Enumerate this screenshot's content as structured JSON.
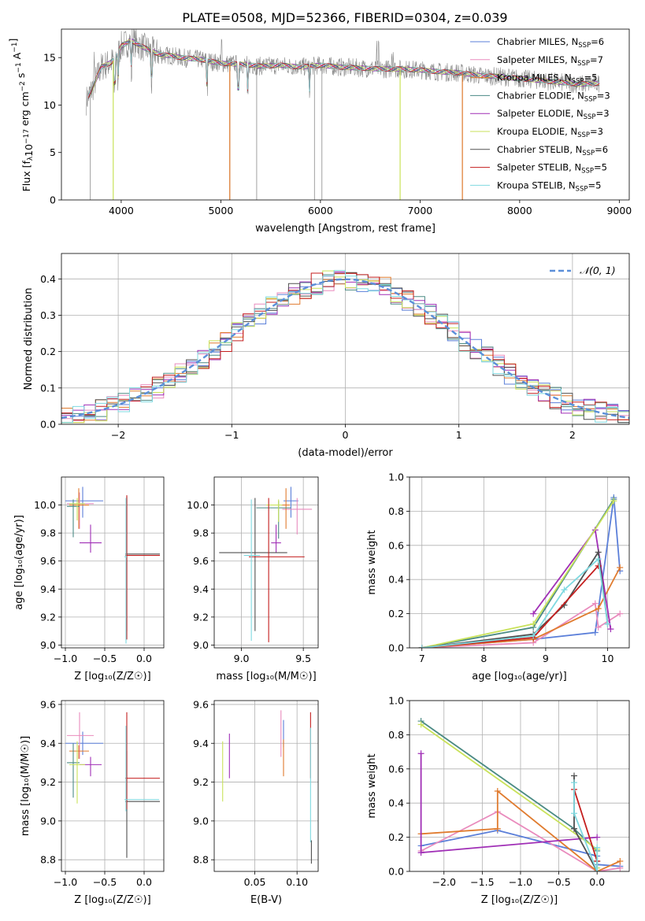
{
  "figure": {
    "title": "PLATE=0508, MJD=52366, FIBERID=0304, z=0.039"
  },
  "colors": {
    "Chabrier MILES": "#5b7fd9",
    "Salpeter MILES": "#e98bbd",
    "Kroupa MILES": "#e07b2e",
    "Chabrier ELODIE": "#4a8a84",
    "Salpeter ELODIE": "#a02fb6",
    "Kroupa ELODIE": "#c9e25a",
    "Chabrier STELIB": "#505050",
    "Salpeter STELIB": "#c41e1e",
    "Kroupa STELIB": "#7fd9e0",
    "data": "#8a8a8a",
    "normal": "#5b8fd9"
  },
  "chart_data": [
    {
      "id": "spectrum",
      "type": "line",
      "xlabel": "wavelength [Angstrom, rest frame]",
      "ylabel": "Flux [f_λ 10^-17 erg cm^-2 s^-1 A^-1]",
      "xlim": [
        3400,
        9100
      ],
      "ylim": [
        0,
        18
      ],
      "xticks": [
        4000,
        5000,
        6000,
        7000,
        8000,
        9000
      ],
      "yticks": [
        0,
        5,
        10,
        15
      ],
      "grid": false,
      "legend_position": "right",
      "legend": [
        {
          "label": "Chabrier MILES, N",
          "sub": "SSP",
          "suffix": "=6"
        },
        {
          "label": "Salpeter MILES, N",
          "sub": "SSP",
          "suffix": "=7"
        },
        {
          "label": "Kroupa MILES, N",
          "sub": "SSP",
          "suffix": "=5"
        },
        {
          "label": "Chabrier ELODIE, N",
          "sub": "SSP",
          "suffix": "=3"
        },
        {
          "label": "Salpeter ELODIE, N",
          "sub": "SSP",
          "suffix": "=3"
        },
        {
          "label": "Kroupa ELODIE, N",
          "sub": "SSP",
          "suffix": "=3"
        },
        {
          "label": "Chabrier STELIB, N",
          "sub": "SSP",
          "suffix": "=6"
        },
        {
          "label": "Salpeter STELIB, N",
          "sub": "SSP",
          "suffix": "=5"
        },
        {
          "label": "Kroupa STELIB, N",
          "sub": "SSP",
          "suffix": "=5"
        }
      ],
      "continuum": {
        "wavelength": [
          3650,
          3700,
          3800,
          3900,
          3950,
          4000,
          4100,
          4200,
          4300,
          4400,
          4500,
          4600,
          4800,
          5000,
          5200,
          5400,
          5600,
          5800,
          6000,
          6200,
          6400,
          6600,
          6800,
          7000,
          7200,
          7400,
          7600,
          7800,
          8000,
          8200,
          8400,
          8600,
          8800
        ],
        "flux": [
          10.5,
          11.5,
          14.0,
          14.5,
          15.0,
          16.2,
          16.8,
          16.2,
          15.7,
          15.3,
          15.2,
          15.0,
          14.8,
          14.4,
          14.3,
          14.1,
          14.2,
          14.0,
          14.2,
          14.0,
          13.9,
          13.8,
          13.8,
          13.7,
          13.5,
          13.4,
          13.1,
          13.0,
          12.8,
          12.6,
          12.4,
          12.2,
          12.3
        ]
      },
      "lines": {
        "absorption": [
          3933,
          3968,
          4102,
          4304,
          4861,
          5175,
          5270,
          5892
        ],
        "emission": [
          3727,
          4861,
          5007,
          6563,
          6583,
          6716,
          6731
        ]
      },
      "spikes": [
        {
          "wavelength": 3690,
          "flux": 0
        },
        {
          "wavelength": 5090,
          "flux": 0
        },
        {
          "wavelength": 5360,
          "flux": 0
        },
        {
          "wavelength": 5940,
          "flux": 0
        },
        {
          "wavelength": 6015,
          "flux": 0
        },
        {
          "wavelength": 6800,
          "flux": 0
        },
        {
          "wavelength": 7425,
          "flux": 1
        }
      ]
    },
    {
      "id": "residuals",
      "type": "bar",
      "xlabel": "(data-model)/error",
      "ylabel": "Normed distribution",
      "xlim": [
        -2.5,
        2.5
      ],
      "ylim": [
        0,
        0.47
      ],
      "xticks": [
        -2,
        -1,
        0,
        1,
        2
      ],
      "yticks": [
        0.0,
        0.1,
        0.2,
        0.3,
        0.4
      ],
      "grid": true,
      "legend_position": "top-right",
      "legend_label": "𝒩(0, 1)",
      "bin_width": 0.1,
      "bin_start": -2.5,
      "reference_curve": {
        "name": "𝒩(0, 1)",
        "mean": 0,
        "sigma": 1
      }
    },
    {
      "id": "age-vs-Z",
      "type": "scatter",
      "xlabel": "Z [log₁₀(Z/Z☉)]",
      "ylabel": "age  [log₁₀(age/yr)]",
      "xlim": [
        -1.05,
        0.25
      ],
      "ylim": [
        8.98,
        10.2
      ],
      "xticks": [
        -1.0,
        -0.5,
        0.0
      ],
      "yticks": [
        9.0,
        9.2,
        9.4,
        9.6,
        9.8,
        10.0
      ],
      "grid": true,
      "points": [
        {
          "s": "Chabrier MILES",
          "x": -0.78,
          "y": 10.03,
          "xl": 0.22,
          "xh": 0.26,
          "yl": 0.12,
          "yh": 0.1
        },
        {
          "s": "Salpeter MILES",
          "x": -0.82,
          "y": 10.01,
          "xl": 0.16,
          "xh": 0.18,
          "yl": 0.18,
          "yh": 0.08
        },
        {
          "s": "Kroupa MILES",
          "x": -0.83,
          "y": 10.0,
          "xl": 0.12,
          "xh": 0.13,
          "yl": 0.17,
          "yh": 0.12
        },
        {
          "s": "Chabrier ELODIE",
          "x": -0.9,
          "y": 9.99,
          "xl": 0.08,
          "xh": 0.08,
          "yl": 0.22,
          "yh": 0.05
        },
        {
          "s": "Salpeter ELODIE",
          "x": -0.68,
          "y": 9.73,
          "xl": 0.14,
          "xh": 0.14,
          "yl": 0.07,
          "yh": 0.13
        },
        {
          "s": "Kroupa ELODIE",
          "x": -0.85,
          "y": 10.01,
          "xl": 0.1,
          "xh": 0.1,
          "yl": 0.12,
          "yh": 0.04
        },
        {
          "s": "Chabrier STELIB",
          "x": -0.22,
          "y": 9.65,
          "xl": 0.02,
          "xh": 0.42,
          "yl": 0.55,
          "yh": 0.41
        },
        {
          "s": "Salpeter STELIB",
          "x": -0.22,
          "y": 9.64,
          "xl": 0.02,
          "xh": 0.42,
          "yl": 0.6,
          "yh": 0.43
        },
        {
          "s": "Kroupa STELIB",
          "x": -0.23,
          "y": 9.63,
          "xl": 0.02,
          "xh": 0.01,
          "yl": 0.62,
          "yh": 0.42
        }
      ]
    },
    {
      "id": "age-vs-mass",
      "type": "scatter",
      "xlabel": "mass [log₁₀(M/M☉)]",
      "ylabel": "",
      "xlim": [
        8.78,
        9.62
      ],
      "ylim": [
        8.98,
        10.2
      ],
      "xticks": [
        9.0,
        9.5
      ],
      "yticks": [
        9.0,
        9.2,
        9.4,
        9.6,
        9.8,
        10.0
      ],
      "grid": true,
      "points": [
        {
          "s": "Chabrier MILES",
          "x": 9.4,
          "y": 10.03,
          "xl": 0.06,
          "xh": 0.06,
          "yl": 0.12,
          "yh": 0.1
        },
        {
          "s": "Salpeter MILES",
          "x": 9.45,
          "y": 9.97,
          "xl": 0.12,
          "xh": 0.12,
          "yl": 0.18,
          "yh": 0.08
        },
        {
          "s": "Kroupa MILES",
          "x": 9.36,
          "y": 10.0,
          "xl": 0.04,
          "xh": 0.03,
          "yl": 0.17,
          "yh": 0.12
        },
        {
          "s": "Chabrier ELODIE",
          "x": 9.3,
          "y": 9.98,
          "xl": 0.18,
          "xh": 0.1,
          "yl": 0.22,
          "yh": 0.05
        },
        {
          "s": "Salpeter ELODIE",
          "x": 9.28,
          "y": 9.73,
          "xl": 0.04,
          "xh": 0.04,
          "yl": 0.07,
          "yh": 0.13
        },
        {
          "s": "Kroupa ELODIE",
          "x": 9.3,
          "y": 10.0,
          "xl": 0.1,
          "xh": 0.03,
          "yl": 0.12,
          "yh": 0.04
        },
        {
          "s": "Chabrier STELIB",
          "x": 9.11,
          "y": 9.66,
          "xl": 0.29,
          "xh": 0.26,
          "yl": 0.56,
          "yh": 0.39
        },
        {
          "s": "Salpeter STELIB",
          "x": 9.22,
          "y": 9.63,
          "xl": 0.16,
          "xh": 0.29,
          "yl": 0.61,
          "yh": 0.42
        },
        {
          "s": "Kroupa STELIB",
          "x": 9.08,
          "y": 9.64,
          "xl": 0.06,
          "xh": 0.07,
          "yl": 0.61,
          "yh": 0.4
        }
      ]
    },
    {
      "id": "weight-vs-age",
      "type": "line",
      "xlabel": "age  [log₁₀(age/yr)]",
      "ylabel": "mass weight",
      "xlim": [
        6.8,
        10.35
      ],
      "ylim": [
        0,
        1.0
      ],
      "xticks": [
        7,
        8,
        9,
        10
      ],
      "yticks": [
        0.0,
        0.2,
        0.4,
        0.6,
        0.8,
        1.0
      ],
      "grid": true,
      "series": [
        {
          "s": "Chabrier MILES",
          "x": [
            7.0,
            8.8,
            9.8,
            10.1,
            10.2
          ],
          "y": [
            0.0,
            0.05,
            0.09,
            0.88,
            0.45
          ]
        },
        {
          "s": "Salpeter MILES",
          "x": [
            7.0,
            8.8,
            9.8,
            9.85,
            10.2
          ],
          "y": [
            0.0,
            0.03,
            0.26,
            0.12,
            0.2
          ]
        },
        {
          "s": "Kroupa MILES",
          "x": [
            7.0,
            8.8,
            9.85,
            10.2
          ],
          "y": [
            0.0,
            0.05,
            0.23,
            0.47
          ]
        },
        {
          "s": "Chabrier ELODIE",
          "x": [
            7.0,
            8.8,
            10.1
          ],
          "y": [
            0.0,
            0.12,
            0.87
          ]
        },
        {
          "s": "Salpeter ELODIE",
          "x": [
            8.8,
            9.8,
            10.05
          ],
          "y": [
            0.2,
            0.69,
            0.11
          ]
        },
        {
          "s": "Kroupa ELODIE",
          "x": [
            7.0,
            8.8,
            10.1
          ],
          "y": [
            0.0,
            0.14,
            0.86
          ]
        },
        {
          "s": "Chabrier STELIB",
          "x": [
            7.0,
            8.8,
            9.3,
            9.85,
            10.0
          ],
          "y": [
            0.0,
            0.08,
            0.25,
            0.56,
            0.14
          ]
        },
        {
          "s": "Salpeter STELIB",
          "x": [
            7.0,
            8.8,
            9.85
          ],
          "y": [
            0.0,
            0.06,
            0.48
          ]
        },
        {
          "s": "Kroupa STELIB",
          "x": [
            7.0,
            8.8,
            9.3,
            9.85,
            10.0
          ],
          "y": [
            0.0,
            0.07,
            0.34,
            0.52,
            0.14
          ]
        }
      ]
    },
    {
      "id": "mass-vs-Z",
      "type": "scatter",
      "xlabel": "Z [log₁₀(Z/Z☉)]",
      "ylabel": "mass [log₁₀(M/M☉)]",
      "xlim": [
        -1.05,
        0.25
      ],
      "ylim": [
        8.74,
        9.62
      ],
      "xticks": [
        -1.0,
        -0.5,
        0.0
      ],
      "yticks": [
        8.8,
        9.0,
        9.2,
        9.4,
        9.6
      ],
      "grid": true,
      "points": [
        {
          "s": "Chabrier MILES",
          "x": -0.78,
          "y": 9.4,
          "xl": 0.22,
          "xh": 0.26,
          "yl": 0.06,
          "yh": 0.06
        },
        {
          "s": "Salpeter MILES",
          "x": -0.82,
          "y": 9.44,
          "xl": 0.16,
          "xh": 0.18,
          "yl": 0.12,
          "yh": 0.12
        },
        {
          "s": "Kroupa MILES",
          "x": -0.83,
          "y": 9.36,
          "xl": 0.12,
          "xh": 0.13,
          "yl": 0.04,
          "yh": 0.03
        },
        {
          "s": "Chabrier ELODIE",
          "x": -0.9,
          "y": 9.3,
          "xl": 0.08,
          "xh": 0.08,
          "yl": 0.18,
          "yh": 0.1
        },
        {
          "s": "Salpeter ELODIE",
          "x": -0.68,
          "y": 9.29,
          "xl": 0.14,
          "xh": 0.14,
          "yl": 0.06,
          "yh": 0.04
        },
        {
          "s": "Kroupa ELODIE",
          "x": -0.85,
          "y": 9.29,
          "xl": 0.1,
          "xh": 0.1,
          "yl": 0.2,
          "yh": 0.12
        },
        {
          "s": "Chabrier STELIB",
          "x": -0.22,
          "y": 9.1,
          "xl": 0.02,
          "xh": 0.42,
          "yl": 0.29,
          "yh": 0.26
        },
        {
          "s": "Salpeter STELIB",
          "x": -0.22,
          "y": 9.22,
          "xl": 0.02,
          "xh": 0.42,
          "yl": 0.16,
          "yh": 0.34
        },
        {
          "s": "Kroupa STELIB",
          "x": -0.23,
          "y": 9.11,
          "xl": 0.02,
          "xh": 0.42,
          "yl": 0.06,
          "yh": 0.38
        }
      ]
    },
    {
      "id": "mass-vs-EBV",
      "type": "scatter",
      "xlabel": "E(B-V)",
      "ylabel": "",
      "xlim": [
        0.002,
        0.125
      ],
      "ylim": [
        8.74,
        9.62
      ],
      "xticks": [
        0.05,
        0.1
      ],
      "yticks": [
        8.8,
        9.0,
        9.2,
        9.4,
        9.6
      ],
      "grid": true,
      "points": [
        {
          "s": "Kroupa ELODIE",
          "x": 0.012,
          "y": 9.25,
          "yl": 0.15,
          "yh": 0.16
        },
        {
          "s": "Salpeter ELODIE",
          "x": 0.02,
          "y": 9.34,
          "yl": 0.12,
          "yh": 0.11
        },
        {
          "s": "Salpeter MILES",
          "x": 0.081,
          "y": 9.45,
          "yl": 0.12,
          "yh": 0.12
        },
        {
          "s": "Chabrier MILES",
          "x": 0.084,
          "y": 9.45,
          "yl": 0.07,
          "yh": 0.07
        },
        {
          "s": "Kroupa MILES",
          "x": 0.084,
          "y": 9.34,
          "yl": 0.11,
          "yh": 0.08
        },
        {
          "s": "Salpeter STELIB",
          "x": 0.116,
          "y": 9.4,
          "yl": 0.18,
          "yh": 0.16
        },
        {
          "s": "Kroupa STELIB",
          "x": 0.116,
          "y": 9.18,
          "yl": 0.29,
          "yh": 0.3
        },
        {
          "s": "Chabrier STELIB",
          "x": 0.117,
          "y": 8.9,
          "yl": 0.12,
          "yh": 0.0
        }
      ]
    },
    {
      "id": "weight-vs-Z",
      "type": "line",
      "xlabel": "Z [log₁₀(Z/Z☉)]",
      "ylabel": "mass weight",
      "xlim": [
        -2.45,
        0.42
      ],
      "ylim": [
        0,
        1.0
      ],
      "xticks": [
        -2.0,
        -1.5,
        -1.0,
        -0.5,
        0.0
      ],
      "yticks": [
        0.0,
        0.2,
        0.4,
        0.6,
        0.8,
        1.0
      ],
      "grid": true,
      "series": [
        {
          "s": "Chabrier MILES",
          "x": [
            -2.3,
            -1.3,
            0.0,
            0.0,
            0.3
          ],
          "y": [
            0.15,
            0.24,
            0.09,
            0.04,
            0.03
          ]
        },
        {
          "s": "Salpeter MILES",
          "x": [
            -2.3,
            -1.3,
            0.0,
            0.3
          ],
          "y": [
            0.12,
            0.35,
            0.0,
            0.02
          ]
        },
        {
          "s": "Kroupa MILES",
          "x": [
            -2.3,
            -1.3,
            -1.3,
            0.0,
            0.3
          ],
          "y": [
            0.22,
            0.25,
            0.47,
            0.0,
            0.06
          ]
        },
        {
          "s": "Chabrier ELODIE",
          "x": [
            -2.3,
            -0.3,
            0.0
          ],
          "y": [
            0.88,
            0.25,
            0.12
          ]
        },
        {
          "s": "Salpeter ELODIE",
          "x": [
            -2.3,
            -2.3,
            0.0
          ],
          "y": [
            0.69,
            0.11,
            0.2
          ]
        },
        {
          "s": "Kroupa ELODIE",
          "x": [
            -2.3,
            0.0,
            0.0
          ],
          "y": [
            0.86,
            0.13,
            0.02
          ]
        },
        {
          "s": "Chabrier STELIB",
          "x": [
            -0.3,
            -0.3,
            0.0,
            0.0
          ],
          "y": [
            0.56,
            0.25,
            0.0,
            0.06
          ]
        },
        {
          "s": "Salpeter STELIB",
          "x": [
            -0.3,
            0.0
          ],
          "y": [
            0.48,
            0.06
          ]
        },
        {
          "s": "Kroupa STELIB",
          "x": [
            -0.3,
            -0.3,
            0.0,
            0.0
          ],
          "y": [
            0.52,
            0.34,
            0.0,
            0.14
          ]
        }
      ]
    }
  ]
}
